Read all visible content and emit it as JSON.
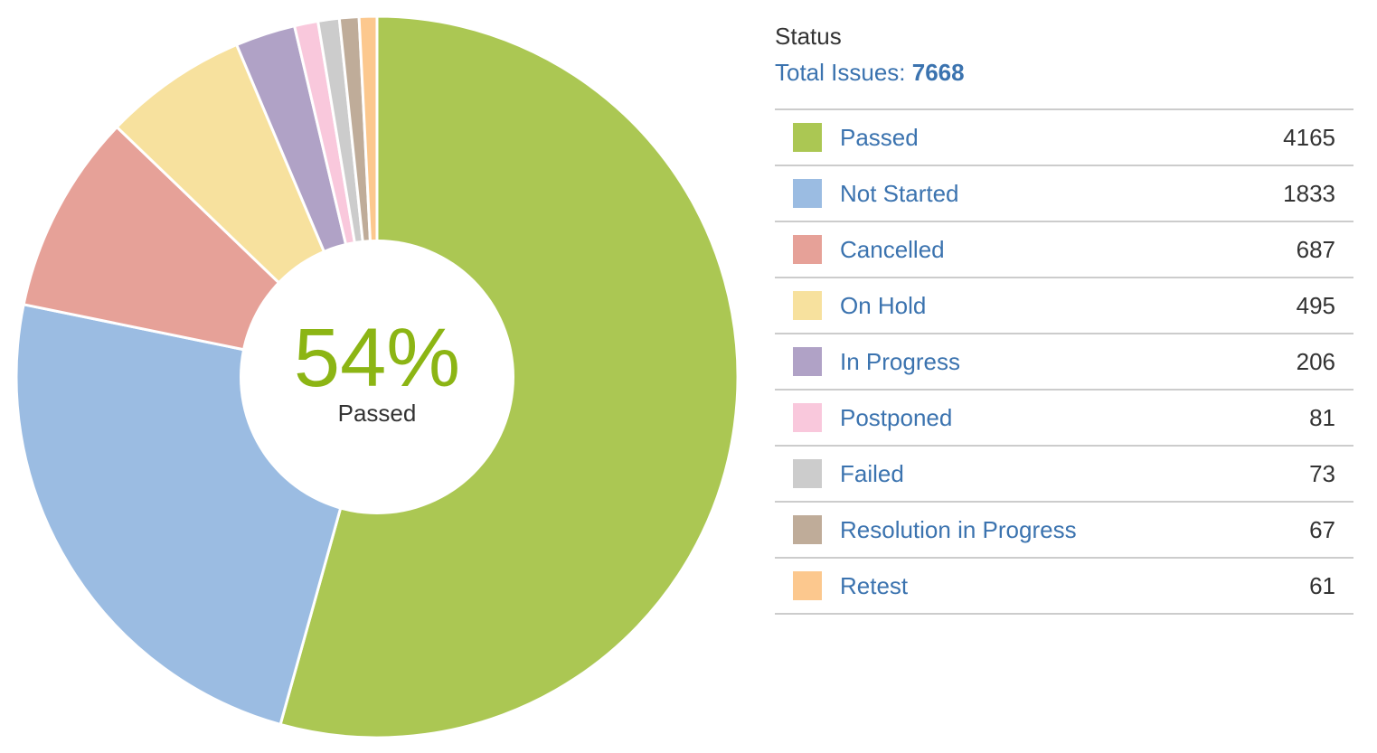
{
  "chart_data": {
    "type": "pie",
    "title": "",
    "categories": [
      "Passed",
      "Not Started",
      "Cancelled",
      "On Hold",
      "In Progress",
      "Postponed",
      "Failed",
      "Resolution in Progress",
      "Retest"
    ],
    "values": [
      4165,
      1833,
      687,
      495,
      206,
      81,
      73,
      67,
      61
    ],
    "colors": [
      "#abc753",
      "#9bbce2",
      "#e6a198",
      "#f7e19e",
      "#b0a2c6",
      "#f9c8dc",
      "#cccccc",
      "#bfac99",
      "#fcc88e"
    ]
  },
  "center": {
    "percent": "54%",
    "label": "Passed"
  },
  "legend": {
    "heading": "Status",
    "total_label": "Total Issues:",
    "total_value": "7668",
    "rows": [
      {
        "label": "Passed",
        "count": "4165"
      },
      {
        "label": "Not Started",
        "count": "1833"
      },
      {
        "label": "Cancelled",
        "count": "687"
      },
      {
        "label": "On Hold",
        "count": "495"
      },
      {
        "label": "In Progress",
        "count": "206"
      },
      {
        "label": "Postponed",
        "count": "81"
      },
      {
        "label": "Failed",
        "count": "73"
      },
      {
        "label": "Resolution in Progress",
        "count": "67"
      },
      {
        "label": "Retest",
        "count": "61"
      }
    ]
  }
}
